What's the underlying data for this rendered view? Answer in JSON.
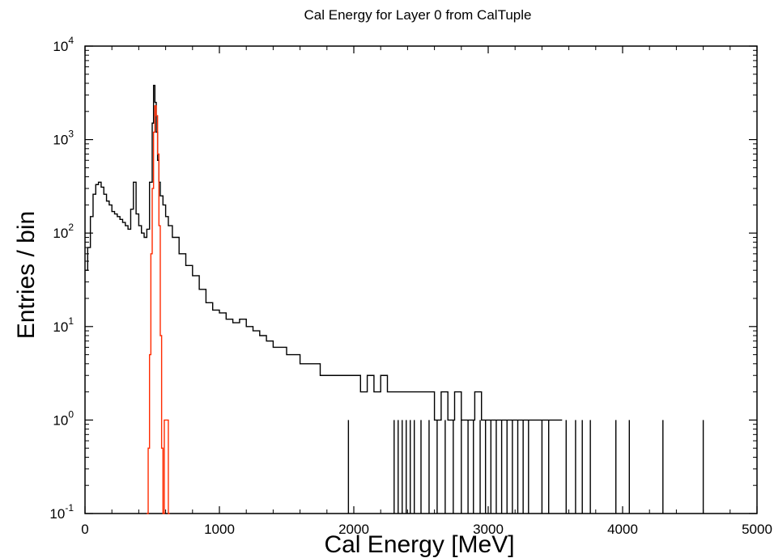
{
  "chart_data": {
    "type": "histogram",
    "title": "Cal Energy for Layer 0 from CalTuple",
    "xlabel": "Cal Energy [MeV]",
    "ylabel": "Entries / bin",
    "xlim": [
      0,
      5000
    ],
    "ylim": [
      0.1,
      10000
    ],
    "y_scale": "log",
    "grid": false,
    "x_ticks": [
      {
        "value": 0,
        "label": "0"
      },
      {
        "value": 1000,
        "label": "1000"
      },
      {
        "value": 2000,
        "label": "2000"
      },
      {
        "value": 3000,
        "label": "3000"
      },
      {
        "value": 4000,
        "label": "4000"
      },
      {
        "value": 5000,
        "label": "5000"
      }
    ],
    "y_ticks": [
      {
        "value": 0.1,
        "base": "10",
        "exp": "-1"
      },
      {
        "value": 1,
        "base": "10",
        "exp": "0"
      },
      {
        "value": 10,
        "base": "10",
        "exp": "1"
      },
      {
        "value": 100,
        "base": "10",
        "exp": "2"
      },
      {
        "value": 1000,
        "base": "10",
        "exp": "3"
      },
      {
        "value": 10000,
        "base": "10",
        "exp": "4"
      }
    ],
    "series": [
      {
        "color": "#000000",
        "type": "step",
        "x": [
          0,
          20,
          40,
          60,
          80,
          100,
          120,
          140,
          160,
          180,
          200,
          220,
          240,
          260,
          280,
          300,
          320,
          340,
          360,
          380,
          400,
          420,
          440,
          460,
          480,
          500,
          510,
          520,
          530,
          540,
          550,
          560,
          580,
          600,
          620,
          650,
          700,
          750,
          800,
          850,
          900,
          950,
          1000,
          1050,
          1100,
          1150,
          1200,
          1250,
          1300,
          1350,
          1400,
          1450,
          1500,
          1550,
          1600,
          1650,
          1700,
          1750,
          1800,
          1850,
          1900,
          1950,
          2000,
          2050,
          2100,
          2150,
          2200,
          2250,
          2300,
          2350,
          2400,
          2450,
          2500,
          2550,
          2600,
          2650,
          2700,
          2750,
          2800,
          2850,
          2900,
          2950,
          3000,
          3050,
          3100,
          3150,
          3200,
          3250,
          3300,
          3350,
          3400,
          3450,
          3500
        ],
        "y": [
          40,
          70,
          150,
          260,
          330,
          350,
          310,
          260,
          220,
          200,
          170,
          160,
          150,
          140,
          130,
          120,
          110,
          180,
          350,
          160,
          120,
          100,
          90,
          110,
          350,
          1500,
          3800,
          2500,
          1200,
          600,
          350,
          250,
          200,
          150,
          120,
          90,
          60,
          45,
          35,
          25,
          18,
          15,
          14,
          12,
          11,
          12,
          10,
          9,
          8,
          7,
          6,
          6,
          5,
          5,
          4,
          4,
          4,
          3,
          3,
          3,
          3,
          3,
          3,
          2,
          3,
          2,
          3,
          2,
          2,
          2,
          2,
          2,
          2,
          2,
          1,
          2,
          1,
          2,
          1,
          1,
          2,
          1,
          1,
          1,
          1,
          1,
          1,
          1,
          1,
          1,
          1,
          1,
          1
        ]
      },
      {
        "color": "#ff2a00",
        "type": "step",
        "x": [
          460,
          470,
          480,
          490,
          500,
          510,
          520,
          530,
          540,
          550,
          560,
          570,
          580,
          590,
          600,
          610,
          620
        ],
        "y": [
          0.1,
          0.5,
          5,
          60,
          300,
          1200,
          2300,
          1800,
          700,
          120,
          8,
          0.5,
          0.1,
          1,
          1,
          1,
          0.1
        ]
      }
    ],
    "single_entry_bins_x": [
      1960,
      2300,
      2330,
      2360,
      2390,
      2420,
      2450,
      2500,
      2560,
      2620,
      2680,
      2740,
      2800,
      2850,
      2890,
      2940,
      2980,
      3020,
      3060,
      3100,
      3140,
      3180,
      3220,
      3260,
      3300,
      3400,
      3450,
      3580,
      3650,
      3700,
      3760,
      3950,
      4050,
      4300,
      4600
    ]
  }
}
